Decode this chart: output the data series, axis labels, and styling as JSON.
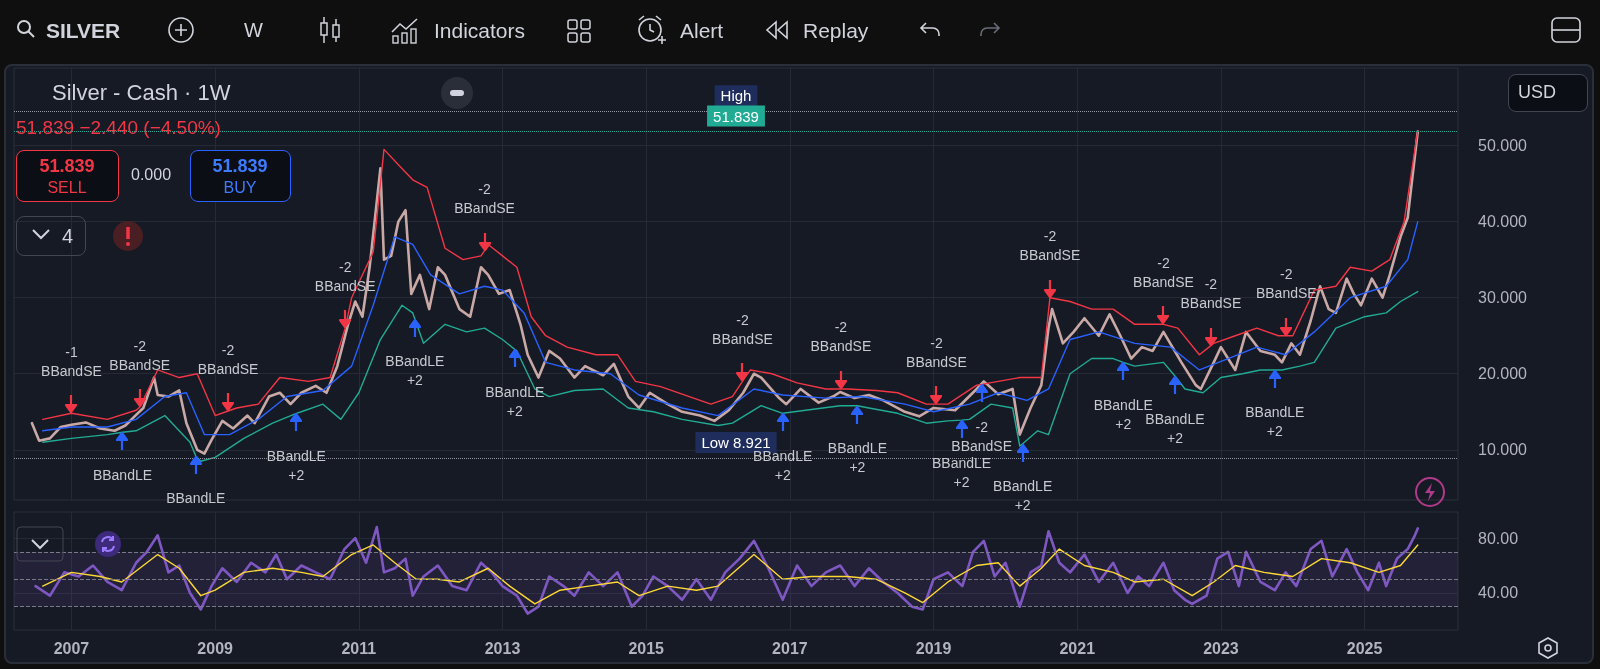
{
  "chart_data": [
    {
      "type": "line",
      "title": "Silver - Cash · 1W",
      "subtitle": "51.839 −2.440 (−4.50%)",
      "xlim": [
        2006.2,
        2026.3
      ],
      "xticks": [
        2007,
        2009,
        2011,
        2013,
        2015,
        2017,
        2019,
        2021,
        2023,
        2025
      ],
      "ylim": [
        3.4,
        60.2
      ],
      "yticks": [
        {
          "value": 10,
          "label": "10.000"
        },
        {
          "value": 20,
          "label": "20.000"
        },
        {
          "value": 30,
          "label": "30.000"
        },
        {
          "value": 40,
          "label": "40.000"
        },
        {
          "value": 50,
          "label": "50.000"
        }
      ],
      "tick_labels": "y",
      "grid": true,
      "marker": "none",
      "line_style": "solid",
      "series": [
        {
          "color": "#c9a9a6",
          "x": [
            2006.45,
            2006.55,
            2006.7,
            2006.85,
            2007.0,
            2007.2,
            2007.4,
            2007.6,
            2007.75,
            2007.9,
            2008.0,
            2008.15,
            2008.2,
            2008.35,
            2008.5,
            2008.6,
            2008.75,
            2008.85,
            2008.95,
            2009.1,
            2009.25,
            2009.45,
            2009.55,
            2009.75,
            2009.9,
            2010.05,
            2010.2,
            2010.4,
            2010.55,
            2010.7,
            2010.85,
            2010.95,
            2011.05,
            2011.15,
            2011.3,
            2011.35,
            2011.45,
            2011.55,
            2011.65,
            2011.73,
            2011.85,
            2011.98,
            2012.1,
            2012.2,
            2012.4,
            2012.55,
            2012.7,
            2012.8,
            2012.95,
            2013.1,
            2013.25,
            2013.35,
            2013.5,
            2013.65,
            2013.8,
            2014.0,
            2014.15,
            2014.4,
            2014.55,
            2014.75,
            2014.9,
            2015.05,
            2015.3,
            2015.5,
            2015.75,
            2015.95,
            2016.15,
            2016.35,
            2016.5,
            2016.6,
            2016.85,
            2016.95,
            2017.15,
            2017.4,
            2017.6,
            2017.7,
            2017.9,
            2018.1,
            2018.3,
            2018.6,
            2018.8,
            2019.0,
            2019.3,
            2019.6,
            2019.7,
            2019.9,
            2020.1,
            2020.2,
            2020.35,
            2020.5,
            2020.6,
            2020.65,
            2020.8,
            2020.95,
            2021.1,
            2021.3,
            2021.45,
            2021.6,
            2021.75,
            2021.9,
            2022.05,
            2022.2,
            2022.45,
            2022.65,
            2022.72,
            2022.9,
            2023.0,
            2023.2,
            2023.35,
            2023.55,
            2023.75,
            2023.85,
            2023.98,
            2024.1,
            2024.25,
            2024.38,
            2024.5,
            2024.6,
            2024.75,
            2024.85,
            2024.95,
            2025.1,
            2025.25,
            2025.35,
            2025.5,
            2025.6,
            2025.68,
            2025.74
          ],
          "values": [
            13.5,
            11.2,
            11.5,
            13.0,
            13.3,
            13.6,
            12.8,
            12.5,
            13.2,
            14.6,
            15.5,
            19.5,
            17.2,
            17.0,
            17.8,
            13.5,
            10.0,
            9.5,
            11.3,
            13.8,
            12.8,
            14.5,
            13.5,
            17.0,
            17.5,
            16.0,
            17.5,
            18.4,
            17.5,
            21.0,
            26.5,
            29.5,
            27.5,
            34.0,
            47.0,
            35.0,
            35.5,
            40.0,
            41.5,
            30.5,
            33.0,
            28.5,
            34.0,
            33.0,
            28.5,
            27.5,
            34.0,
            33.0,
            30.5,
            31.0,
            26.5,
            22.5,
            19.5,
            23.0,
            22.0,
            19.5,
            21.0,
            19.8,
            21.3,
            17.0,
            15.5,
            17.5,
            16.0,
            15.0,
            14.5,
            13.8,
            15.2,
            17.5,
            20.0,
            19.5,
            16.8,
            16.0,
            18.0,
            16.2,
            17.0,
            17.6,
            16.8,
            17.2,
            16.5,
            15.0,
            14.4,
            15.5,
            15.2,
            18.0,
            19.0,
            17.3,
            18.0,
            12.0,
            15.5,
            18.5,
            26.0,
            28.5,
            24.0,
            25.5,
            27.3,
            25.0,
            27.8,
            25.0,
            22.0,
            23.5,
            23.0,
            25.5,
            21.5,
            18.5,
            18.0,
            21.5,
            23.5,
            20.5,
            25.5,
            23.0,
            22.5,
            21.5,
            24.0,
            22.5,
            27.0,
            31.5,
            28.5,
            28.0,
            32.5,
            30.5,
            29.0,
            32.5,
            30.0,
            33.0,
            38.0,
            40.5,
            47.0,
            51.839
          ]
        },
        {
          "color": "#f23645",
          "x": [
            2006.6,
            2007.0,
            2007.5,
            2007.9,
            2007.95,
            2008.2,
            2008.5,
            2008.75,
            2009.0,
            2009.18,
            2009.3,
            2009.6,
            2009.9,
            2010.3,
            2010.6,
            2010.81,
            2010.9,
            2011.2,
            2011.35,
            2011.6,
            2011.75,
            2011.95,
            2012.2,
            2012.45,
            2012.7,
            2012.75,
            2012.8,
            2013.0,
            2013.2,
            2013.4,
            2013.6,
            2013.9,
            2014.3,
            2014.6,
            2014.85,
            2015.2,
            2015.6,
            2015.9,
            2016.2,
            2016.34,
            2016.45,
            2016.75,
            2017.1,
            2017.5,
            2017.71,
            2017.8,
            2018.2,
            2018.5,
            2018.9,
            2019.04,
            2019.2,
            2019.6,
            2019.67,
            2019.9,
            2020.2,
            2020.5,
            2020.62,
            2020.9,
            2021.2,
            2021.5,
            2021.8,
            2022.2,
            2022.4,
            2022.7,
            2022.86,
            2022.9,
            2023.2,
            2023.5,
            2023.8,
            2023.91,
            2024.0,
            2024.3,
            2024.6,
            2024.8,
            2025.1,
            2025.35,
            2025.55,
            2025.74
          ],
          "values": [
            14.0,
            14.8,
            14.0,
            15.2,
            15.6,
            20.5,
            19.5,
            20.0,
            14.5,
            15.1,
            15.5,
            16.0,
            19.5,
            19.0,
            19.5,
            26.0,
            30.0,
            36.0,
            49.5,
            47.0,
            45.5,
            44.5,
            36.5,
            35.0,
            35.5,
            36.2,
            37.0,
            35.5,
            34.0,
            27.5,
            25.0,
            23.5,
            22.5,
            22.5,
            19.0,
            18.3,
            17.0,
            16.0,
            17.0,
            19.0,
            20.5,
            20.0,
            18.8,
            18.0,
            18.0,
            18.0,
            17.8,
            17.5,
            16.0,
            16.0,
            16.0,
            18.5,
            18.6,
            19.0,
            19.5,
            19.5,
            30.0,
            29.5,
            28.5,
            28.5,
            26.5,
            26.5,
            26.0,
            22.5,
            23.7,
            24.0,
            25.0,
            26.0,
            25.0,
            25.0,
            25.0,
            31.0,
            31.5,
            34.0,
            33.5,
            35.0,
            40.0,
            52.0
          ]
        },
        {
          "color": "#2962ff",
          "x": [
            2006.6,
            2007.0,
            2007.5,
            2007.9,
            2008.3,
            2008.6,
            2008.85,
            2009.2,
            2009.6,
            2010.0,
            2010.5,
            2010.9,
            2011.2,
            2011.5,
            2011.75,
            2012.0,
            2012.4,
            2012.75,
            2013.0,
            2013.3,
            2013.6,
            2014.0,
            2014.5,
            2014.9,
            2015.5,
            2016.0,
            2016.5,
            2016.9,
            2017.5,
            2018.0,
            2018.6,
            2019.0,
            2019.5,
            2019.9,
            2020.3,
            2020.6,
            2020.9,
            2021.3,
            2021.8,
            2022.3,
            2022.7,
            2023.1,
            2023.5,
            2023.9,
            2024.3,
            2024.8,
            2025.3,
            2025.6,
            2025.74
          ],
          "values": [
            12.5,
            13.0,
            13.0,
            14.0,
            17.0,
            17.5,
            12.0,
            12.0,
            14.0,
            17.0,
            17.8,
            21.0,
            29.0,
            38.0,
            37.0,
            33.0,
            30.5,
            31.5,
            31.0,
            28.0,
            21.5,
            20.5,
            20.0,
            17.2,
            15.5,
            14.5,
            18.0,
            17.2,
            16.8,
            17.0,
            16.0,
            15.0,
            16.0,
            17.5,
            16.5,
            18.0,
            24.5,
            25.5,
            24.0,
            23.5,
            20.5,
            22.0,
            23.5,
            22.5,
            25.5,
            30.0,
            31.5,
            35.0,
            40.0
          ]
        },
        {
          "color": "#22ab94",
          "x": [
            2006.6,
            2007.0,
            2007.5,
            2007.71,
            2007.9,
            2008.3,
            2008.65,
            2008.73,
            2008.8,
            2009.0,
            2009.4,
            2009.8,
            2010.13,
            2010.2,
            2010.5,
            2010.75,
            2011.0,
            2011.3,
            2011.6,
            2011.75,
            2011.78,
            2011.9,
            2012.2,
            2012.5,
            2012.75,
            2013.0,
            2013.17,
            2013.2,
            2013.45,
            2013.65,
            2014.0,
            2014.4,
            2014.75,
            2015.1,
            2015.5,
            2016.0,
            2016.2,
            2016.6,
            2016.9,
            2017.3,
            2017.7,
            2017.94,
            2018.1,
            2018.5,
            2018.9,
            2019.2,
            2019.39,
            2019.5,
            2019.8,
            2020.1,
            2020.2,
            2020.24,
            2020.45,
            2020.6,
            2020.9,
            2021.2,
            2021.5,
            2021.64,
            2021.8,
            2022.2,
            2022.36,
            2022.5,
            2022.75,
            2023.0,
            2023.3,
            2023.55,
            2023.75,
            2023.85,
            2024.1,
            2024.3,
            2024.6,
            2025.0,
            2025.3,
            2025.5,
            2025.74
          ],
          "values": [
            11.0,
            11.5,
            12.0,
            12.3,
            12.5,
            14.5,
            11.0,
            9.2,
            8.5,
            9.0,
            11.5,
            13.5,
            14.8,
            15.0,
            16.0,
            14.0,
            17.5,
            24.5,
            29.0,
            28.0,
            27.2,
            24.0,
            26.5,
            25.5,
            26.0,
            24.5,
            23.2,
            23.0,
            18.0,
            17.0,
            17.8,
            18.0,
            15.5,
            15.0,
            14.0,
            13.2,
            13.5,
            15.8,
            14.8,
            15.3,
            15.8,
            15.8,
            15.5,
            14.8,
            13.5,
            13.8,
            13.9,
            14.0,
            16.0,
            15.5,
            10.5,
            10.8,
            12.5,
            12.0,
            20.0,
            22.0,
            22.0,
            21.5,
            21.0,
            21.5,
            19.7,
            18.0,
            17.5,
            19.5,
            20.0,
            20.5,
            20.5,
            20.5,
            21.0,
            21.5,
            26.0,
            27.5,
            28.0,
            29.5,
            30.8
          ]
        }
      ],
      "ref_lines": [
        {
          "axis": "y",
          "value": 54.5,
          "label": "High",
          "color": "#9598a1",
          "line_style": "dotted"
        },
        {
          "axis": "y",
          "value": 51.839,
          "label": "51.839",
          "color": "#22ab94",
          "line_style": "dotted"
        },
        {
          "axis": "y",
          "value": 8.921,
          "label": "Low 8.921",
          "color": "#9598a1",
          "line_style": "dotted"
        }
      ],
      "annotations": [
        "SILVER",
        "W",
        "Indicators",
        "Alert",
        "Replay",
        "USD",
        "51.839",
        "SELL",
        "0.000",
        "51.839",
        "BUY",
        "4",
        {
          "text": "-1\nBBandSE",
          "x": 2007.0,
          "y": 14.8
        },
        {
          "text": "-2\nBBandSE",
          "x": 2007.95,
          "y": 15.6
        },
        {
          "text": "-2\nBBandSE",
          "x": 2009.18,
          "y": 15.1
        },
        {
          "text": "-2\nBBandSE",
          "x": 2010.81,
          "y": 26.0
        },
        {
          "text": "-2\nBBandSE",
          "x": 2012.75,
          "y": 36.2
        },
        {
          "text": "-2\nBBandSE",
          "x": 2016.34,
          "y": 19.0
        },
        {
          "text": "-2\nBBandSE",
          "x": 2017.71,
          "y": 18.0
        },
        {
          "text": "-2\nBBandSE",
          "x": 2019.04,
          "y": 16.0
        },
        {
          "text": "-2\nBBandSE",
          "x": 2019.67,
          "y": 18.6
        },
        {
          "text": "-2\nBBandSE",
          "x": 2020.62,
          "y": 30.0
        },
        {
          "text": "-2\nBBandSE",
          "x": 2022.2,
          "y": 26.5
        },
        {
          "text": "-2\nBBandSE",
          "x": 2022.86,
          "y": 23.7
        },
        {
          "text": "-2\nBBandSE",
          "x": 2023.91,
          "y": 25.0
        },
        {
          "text": "BBandLE",
          "x": 2007.71,
          "y": 12.3
        },
        {
          "text": "BBandLE",
          "x": 2008.73,
          "y": 9.2
        },
        {
          "text": "BBandLE\n+2",
          "x": 2010.13,
          "y": 14.8
        },
        {
          "text": "BBandLE\n+2",
          "x": 2011.78,
          "y": 27.2
        },
        {
          "text": "BBandLE\n+2",
          "x": 2013.17,
          "y": 23.2
        },
        {
          "text": "BBandLE\n+2",
          "x": 2016.9,
          "y": 14.8
        },
        {
          "text": "BBandLE\n+2",
          "x": 2017.94,
          "y": 15.8
        },
        {
          "text": "BBandLE\n+2",
          "x": 2019.39,
          "y": 13.9
        },
        {
          "text": "BBandLE\n+2",
          "x": 2020.24,
          "y": 10.8
        },
        {
          "text": "BBandLE\n+2",
          "x": 2021.64,
          "y": 21.5
        },
        {
          "text": "BBandLE\n+2",
          "x": 2022.36,
          "y": 19.7
        },
        {
          "text": "BBandLE\n+2",
          "x": 2023.75,
          "y": 20.5
        }
      ]
    },
    {
      "type": "line",
      "xlim": [
        2006.2,
        2026.3
      ],
      "xticks": [
        2007,
        2009,
        2011,
        2013,
        2015,
        2017,
        2019,
        2021,
        2023,
        2025
      ],
      "ylim": [
        13,
        99
      ],
      "yticks": [
        {
          "value": 40,
          "label": "40.00"
        },
        {
          "value": 80,
          "label": "80.00"
        }
      ],
      "grid": true,
      "marker": "none",
      "line_style": "solid",
      "series": [
        {
          "color": "#7e57c2",
          "x": [
            2006.5,
            2006.7,
            2006.9,
            2007.1,
            2007.3,
            2007.5,
            2007.7,
            2007.9,
            2008.05,
            2008.2,
            2008.35,
            2008.5,
            2008.65,
            2008.8,
            2008.95,
            2009.1,
            2009.3,
            2009.5,
            2009.7,
            2009.85,
            2010.0,
            2010.2,
            2010.4,
            2010.6,
            2010.8,
            2010.95,
            2011.1,
            2011.25,
            2011.35,
            2011.5,
            2011.65,
            2011.75,
            2011.9,
            2012.1,
            2012.3,
            2012.5,
            2012.7,
            2012.85,
            2013.0,
            2013.2,
            2013.35,
            2013.5,
            2013.65,
            2013.85,
            2014.0,
            2014.2,
            2014.4,
            2014.6,
            2014.8,
            2014.95,
            2015.1,
            2015.3,
            2015.5,
            2015.7,
            2015.9,
            2016.1,
            2016.3,
            2016.5,
            2016.7,
            2016.9,
            2017.1,
            2017.3,
            2017.5,
            2017.7,
            2017.9,
            2018.1,
            2018.3,
            2018.5,
            2018.7,
            2018.85,
            2019.0,
            2019.2,
            2019.4,
            2019.55,
            2019.7,
            2019.85,
            2020.0,
            2020.2,
            2020.35,
            2020.5,
            2020.6,
            2020.75,
            2020.9,
            2021.1,
            2021.3,
            2021.5,
            2021.7,
            2021.85,
            2022.0,
            2022.2,
            2022.35,
            2022.5,
            2022.6,
            2022.8,
            2022.95,
            2023.1,
            2023.25,
            2023.35,
            2023.55,
            2023.75,
            2023.9,
            2024.05,
            2024.25,
            2024.4,
            2024.55,
            2024.75,
            2024.9,
            2025.05,
            2025.2,
            2025.3,
            2025.45,
            2025.6,
            2025.7,
            2025.74
          ],
          "values": [
            45,
            38,
            55,
            52,
            60,
            48,
            42,
            62,
            70,
            82,
            55,
            60,
            40,
            28,
            45,
            58,
            48,
            62,
            55,
            68,
            50,
            60,
            55,
            50,
            72,
            80,
            62,
            88,
            55,
            58,
            65,
            38,
            52,
            60,
            45,
            42,
            62,
            55,
            45,
            38,
            25,
            30,
            52,
            45,
            38,
            55,
            45,
            55,
            30,
            38,
            52,
            45,
            35,
            50,
            35,
            55,
            65,
            78,
            58,
            35,
            60,
            45,
            55,
            60,
            45,
            58,
            48,
            40,
            30,
            28,
            50,
            55,
            45,
            70,
            78,
            52,
            62,
            30,
            55,
            60,
            85,
            62,
            55,
            68,
            48,
            62,
            40,
            52,
            45,
            62,
            42,
            35,
            32,
            38,
            65,
            70,
            45,
            70,
            48,
            42,
            55,
            45,
            72,
            78,
            52,
            72,
            55,
            42,
            62,
            45,
            65,
            72,
            82,
            87
          ]
        },
        {
          "color": "#fdd835",
          "x": [
            2006.6,
            2007.0,
            2007.4,
            2007.7,
            2008.0,
            2008.2,
            2008.5,
            2008.8,
            2009.0,
            2009.4,
            2009.8,
            2010.2,
            2010.5,
            2010.9,
            2011.2,
            2011.5,
            2011.8,
            2012.1,
            2012.4,
            2012.8,
            2013.1,
            2013.45,
            2013.8,
            2014.2,
            2014.6,
            2014.9,
            2015.3,
            2015.7,
            2016.0,
            2016.5,
            2016.9,
            2017.3,
            2017.8,
            2018.2,
            2018.6,
            2018.85,
            2019.2,
            2019.6,
            2019.9,
            2020.2,
            2020.5,
            2020.75,
            2021.1,
            2021.5,
            2021.8,
            2022.2,
            2022.6,
            2022.9,
            2023.2,
            2023.6,
            2024.0,
            2024.4,
            2024.8,
            2025.2,
            2025.5,
            2025.74
          ],
          "values": [
            45,
            55,
            52,
            48,
            60,
            68,
            58,
            38,
            42,
            55,
            58,
            55,
            52,
            68,
            75,
            62,
            50,
            50,
            48,
            58,
            45,
            32,
            42,
            45,
            48,
            38,
            45,
            42,
            45,
            68,
            50,
            52,
            52,
            50,
            40,
            33,
            48,
            60,
            62,
            45,
            58,
            72,
            60,
            55,
            48,
            50,
            38,
            48,
            60,
            55,
            52,
            65,
            62,
            55,
            60,
            75
          ]
        }
      ],
      "ref_lines": [
        {
          "axis": "y",
          "value": 70,
          "color": "#787b86",
          "line_style": "dashed"
        },
        {
          "axis": "y",
          "value": 50,
          "color": "#787b86",
          "line_style": "dashed"
        },
        {
          "axis": "y",
          "value": 30,
          "color": "#787b86",
          "line_style": "dashed"
        }
      ],
      "bands": [
        {
          "axis": "y",
          "from": 30,
          "to": 70,
          "color": "#7e57c2"
        }
      ]
    }
  ]
}
